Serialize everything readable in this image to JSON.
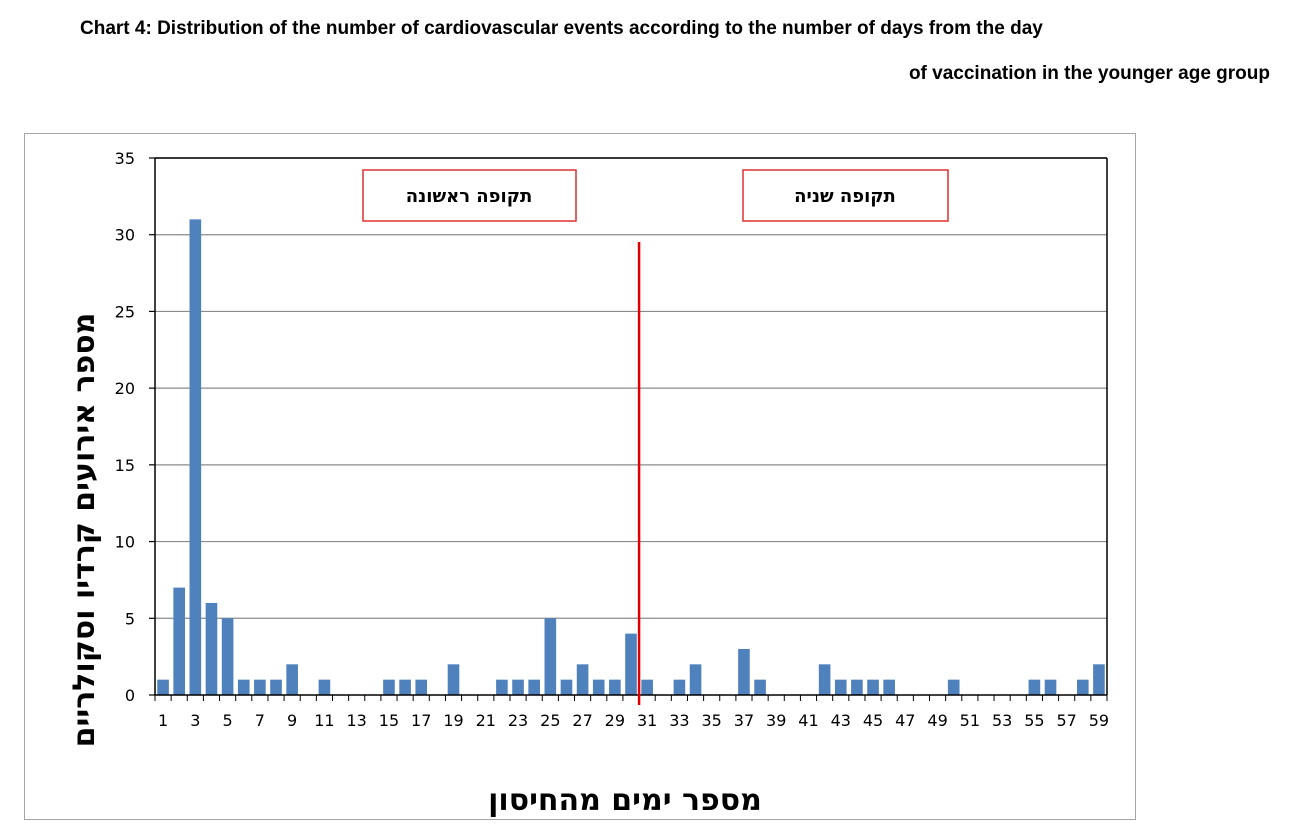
{
  "title_line1": "Chart 4: Distribution of the number of cardiovascular events according to the number of days from the day",
  "title_line2": "of vaccination in the younger age group",
  "chart_data": {
    "type": "bar",
    "title": "Chart 4: Distribution of the number of cardiovascular events according to the number of days from the day of vaccination in the younger age group",
    "xlabel": "מספר ימים מהחיסון",
    "ylabel": "מספר אירועים קרדיו וסקולריים",
    "categories": [
      1,
      2,
      3,
      4,
      5,
      6,
      7,
      8,
      9,
      10,
      11,
      12,
      13,
      14,
      15,
      16,
      17,
      18,
      19,
      20,
      21,
      22,
      23,
      24,
      25,
      26,
      27,
      28,
      29,
      30,
      31,
      32,
      33,
      34,
      35,
      36,
      37,
      38,
      39,
      40,
      41,
      42,
      43,
      44,
      45,
      46,
      47,
      48,
      49,
      50,
      51,
      52,
      53,
      54,
      55,
      56,
      57,
      58,
      59
    ],
    "values": [
      1,
      7,
      31,
      6,
      5,
      1,
      1,
      1,
      2,
      0,
      1,
      0,
      0,
      0,
      1,
      1,
      1,
      0,
      2,
      0,
      0,
      1,
      1,
      1,
      5,
      1,
      2,
      1,
      1,
      4,
      1,
      0,
      1,
      2,
      0,
      0,
      3,
      1,
      0,
      0,
      0,
      2,
      1,
      1,
      1,
      1,
      0,
      0,
      0,
      1,
      0,
      0,
      0,
      0,
      1,
      1,
      0,
      1,
      2
    ],
    "x_tick_labels": [
      "1",
      "3",
      "5",
      "7",
      "9",
      "11",
      "13",
      "15",
      "17",
      "19",
      "21",
      "23",
      "25",
      "27",
      "29",
      "31",
      "33",
      "35",
      "37",
      "39",
      "41",
      "43",
      "45",
      "47",
      "49",
      "51",
      "53",
      "55",
      "57",
      "59"
    ],
    "ylim": [
      0,
      35
    ],
    "y_ticks": [
      0,
      5,
      10,
      15,
      20,
      25,
      30,
      35
    ],
    "grid": true,
    "bar_color": "#4f81bd",
    "divider": {
      "after_day": 30,
      "color": "#e00000"
    },
    "periods": [
      {
        "label": "תקופה ראשונה"
      },
      {
        "label": "תקופה שניה"
      }
    ]
  }
}
